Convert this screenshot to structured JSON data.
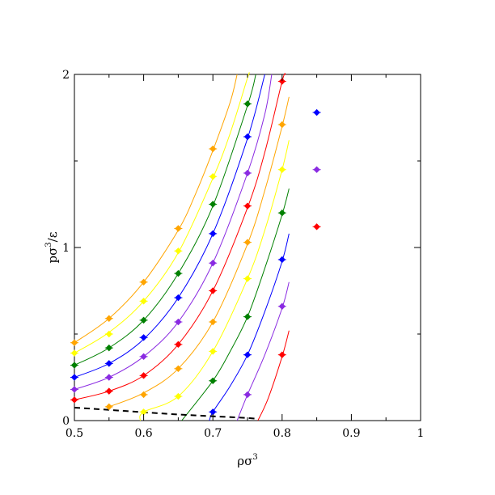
{
  "chart_data": {
    "type": "scatter",
    "xlabel": "ρσ",
    "xlabel_sup": "3",
    "ylabel_pre": "pσ",
    "ylabel_sup": "3",
    "ylabel_post": "/ε",
    "xlim": [
      0.5,
      1.0
    ],
    "ylim": [
      0,
      2
    ],
    "x_ticks": [
      0.5,
      0.6,
      0.7,
      0.8,
      0.9,
      1.0
    ],
    "x_tick_labels": [
      "0.5",
      "0.6",
      "0.7",
      "0.8",
      "0.9",
      "1"
    ],
    "y_ticks": [
      0,
      1,
      2
    ],
    "y_tick_labels": [
      "0",
      "1",
      "2"
    ],
    "grid": false,
    "legend": "none",
    "series": [
      {
        "color": "#ff0000",
        "points": [
          [
            0.8,
            0.38
          ]
        ],
        "curve": [
          [
            0.765,
            0.0
          ],
          [
            0.78,
            0.13
          ],
          [
            0.8,
            0.37
          ],
          [
            0.81,
            0.52
          ]
        ]
      },
      {
        "color": "#8a2be2",
        "points": [
          [
            0.75,
            0.15
          ],
          [
            0.8,
            0.66
          ]
        ],
        "curve": [
          [
            0.735,
            0.0
          ],
          [
            0.75,
            0.15
          ],
          [
            0.775,
            0.38
          ],
          [
            0.8,
            0.65
          ],
          [
            0.81,
            0.8
          ]
        ]
      },
      {
        "color": "#0000ff",
        "points": [
          [
            0.7,
            0.05
          ],
          [
            0.75,
            0.38
          ],
          [
            0.8,
            0.93
          ]
        ],
        "curve": [
          [
            0.695,
            0.0
          ],
          [
            0.7,
            0.05
          ],
          [
            0.725,
            0.2
          ],
          [
            0.75,
            0.38
          ],
          [
            0.775,
            0.63
          ],
          [
            0.8,
            0.92
          ],
          [
            0.81,
            1.08
          ]
        ]
      },
      {
        "color": "#008000",
        "points": [
          [
            0.7,
            0.23
          ],
          [
            0.75,
            0.6
          ],
          [
            0.8,
            1.2
          ]
        ],
        "curve": [
          [
            0.655,
            0.0
          ],
          [
            0.7,
            0.23
          ],
          [
            0.725,
            0.4
          ],
          [
            0.75,
            0.6
          ],
          [
            0.775,
            0.88
          ],
          [
            0.8,
            1.19
          ],
          [
            0.81,
            1.34
          ]
        ]
      },
      {
        "color": "#ffa500",
        "points": [
          [
            0.5,
            0.45
          ],
          [
            0.55,
            0.59
          ],
          [
            0.6,
            0.8
          ],
          [
            0.65,
            1.11
          ],
          [
            0.7,
            1.57
          ]
        ],
        "curve": [
          [
            0.5,
            0.45
          ],
          [
            0.55,
            0.59
          ],
          [
            0.6,
            0.8
          ],
          [
            0.65,
            1.1
          ],
          [
            0.675,
            1.31
          ],
          [
            0.7,
            1.56
          ],
          [
            0.725,
            1.84
          ],
          [
            0.735,
            2.0
          ]
        ]
      },
      {
        "color": "#ffff00",
        "points": [
          [
            0.5,
            0.39
          ],
          [
            0.55,
            0.5
          ],
          [
            0.6,
            0.69
          ],
          [
            0.65,
            0.98
          ],
          [
            0.7,
            1.41
          ]
        ],
        "curve": [
          [
            0.5,
            0.39
          ],
          [
            0.55,
            0.51
          ],
          [
            0.6,
            0.69
          ],
          [
            0.65,
            0.97
          ],
          [
            0.7,
            1.4
          ],
          [
            0.725,
            1.66
          ],
          [
            0.75,
            1.98
          ],
          [
            0.752,
            2.0
          ]
        ]
      },
      {
        "color": "#008000",
        "points": [
          [
            0.5,
            0.32
          ],
          [
            0.55,
            0.42
          ],
          [
            0.6,
            0.58
          ],
          [
            0.65,
            0.85
          ],
          [
            0.7,
            1.25
          ],
          [
            0.75,
            1.83
          ]
        ],
        "curve": [
          [
            0.5,
            0.32
          ],
          [
            0.55,
            0.42
          ],
          [
            0.6,
            0.58
          ],
          [
            0.65,
            0.85
          ],
          [
            0.7,
            1.24
          ],
          [
            0.75,
            1.82
          ],
          [
            0.762,
            2.0
          ]
        ]
      },
      {
        "color": "#0000ff",
        "points": [
          [
            0.5,
            0.25
          ],
          [
            0.55,
            0.33
          ],
          [
            0.6,
            0.48
          ],
          [
            0.65,
            0.71
          ],
          [
            0.7,
            1.08
          ],
          [
            0.75,
            1.64
          ]
        ],
        "curve": [
          [
            0.5,
            0.25
          ],
          [
            0.55,
            0.33
          ],
          [
            0.6,
            0.47
          ],
          [
            0.65,
            0.71
          ],
          [
            0.7,
            1.08
          ],
          [
            0.75,
            1.63
          ],
          [
            0.775,
            2.0
          ]
        ]
      },
      {
        "color": "#8a2be2",
        "points": [
          [
            0.5,
            0.18
          ],
          [
            0.55,
            0.25
          ],
          [
            0.6,
            0.37
          ],
          [
            0.65,
            0.57
          ],
          [
            0.7,
            0.91
          ],
          [
            0.75,
            1.43
          ],
          [
            0.85,
            1.45
          ]
        ],
        "curve": [
          [
            0.5,
            0.18
          ],
          [
            0.55,
            0.25
          ],
          [
            0.6,
            0.37
          ],
          [
            0.65,
            0.57
          ],
          [
            0.7,
            0.91
          ],
          [
            0.75,
            1.43
          ],
          [
            0.775,
            1.77
          ],
          [
            0.785,
            2.0
          ]
        ]
      },
      {
        "color": "#ff0000",
        "points": [
          [
            0.5,
            0.12
          ],
          [
            0.55,
            0.17
          ],
          [
            0.6,
            0.26
          ],
          [
            0.65,
            0.44
          ],
          [
            0.7,
            0.75
          ],
          [
            0.75,
            1.24
          ],
          [
            0.8,
            1.96
          ],
          [
            0.85,
            1.12
          ]
        ],
        "curve": [
          [
            0.5,
            0.12
          ],
          [
            0.55,
            0.17
          ],
          [
            0.6,
            0.26
          ],
          [
            0.65,
            0.44
          ],
          [
            0.7,
            0.75
          ],
          [
            0.75,
            1.23
          ],
          [
            0.775,
            1.55
          ],
          [
            0.8,
            1.96
          ],
          [
            0.805,
            2.0
          ]
        ]
      },
      {
        "color": "#ffa500",
        "points": [
          [
            0.55,
            0.08
          ],
          [
            0.65,
            0.3
          ],
          [
            0.7,
            0.57
          ],
          [
            0.75,
            1.03
          ],
          [
            0.8,
            1.71
          ]
        ],
        "curve": [
          [
            0.55,
            0.08
          ],
          [
            0.6,
            0.16
          ],
          [
            0.65,
            0.3
          ],
          [
            0.7,
            0.57
          ],
          [
            0.75,
            1.02
          ],
          [
            0.775,
            1.33
          ],
          [
            0.8,
            1.7
          ],
          [
            0.81,
            1.87
          ]
        ]
      },
      {
        "color": "#ffff00",
        "points": [
          [
            0.6,
            0.05
          ],
          [
            0.65,
            0.14
          ],
          [
            0.7,
            0.4
          ],
          [
            0.75,
            0.82
          ],
          [
            0.8,
            1.45
          ]
        ],
        "curve": [
          [
            0.595,
            0.0
          ],
          [
            0.6,
            0.05
          ],
          [
            0.65,
            0.14
          ],
          [
            0.7,
            0.4
          ],
          [
            0.75,
            0.82
          ],
          [
            0.775,
            1.1
          ],
          [
            0.8,
            1.45
          ],
          [
            0.81,
            1.62
          ]
        ]
      },
      {
        "color": "#ffa500",
        "points": [
          [
            0.6,
            0.15
          ]
        ],
        "curve": []
      },
      {
        "color": "#0000ff",
        "points": [
          [
            0.85,
            1.78
          ]
        ],
        "curve": []
      }
    ],
    "coexistence_line": {
      "style": "dashed",
      "color": "#000000",
      "points": [
        [
          0.5,
          0.075
        ],
        [
          0.55,
          0.062
        ],
        [
          0.6,
          0.048
        ],
        [
          0.65,
          0.035
        ],
        [
          0.7,
          0.025
        ],
        [
          0.75,
          0.015
        ],
        [
          0.765,
          0.01
        ]
      ]
    }
  }
}
